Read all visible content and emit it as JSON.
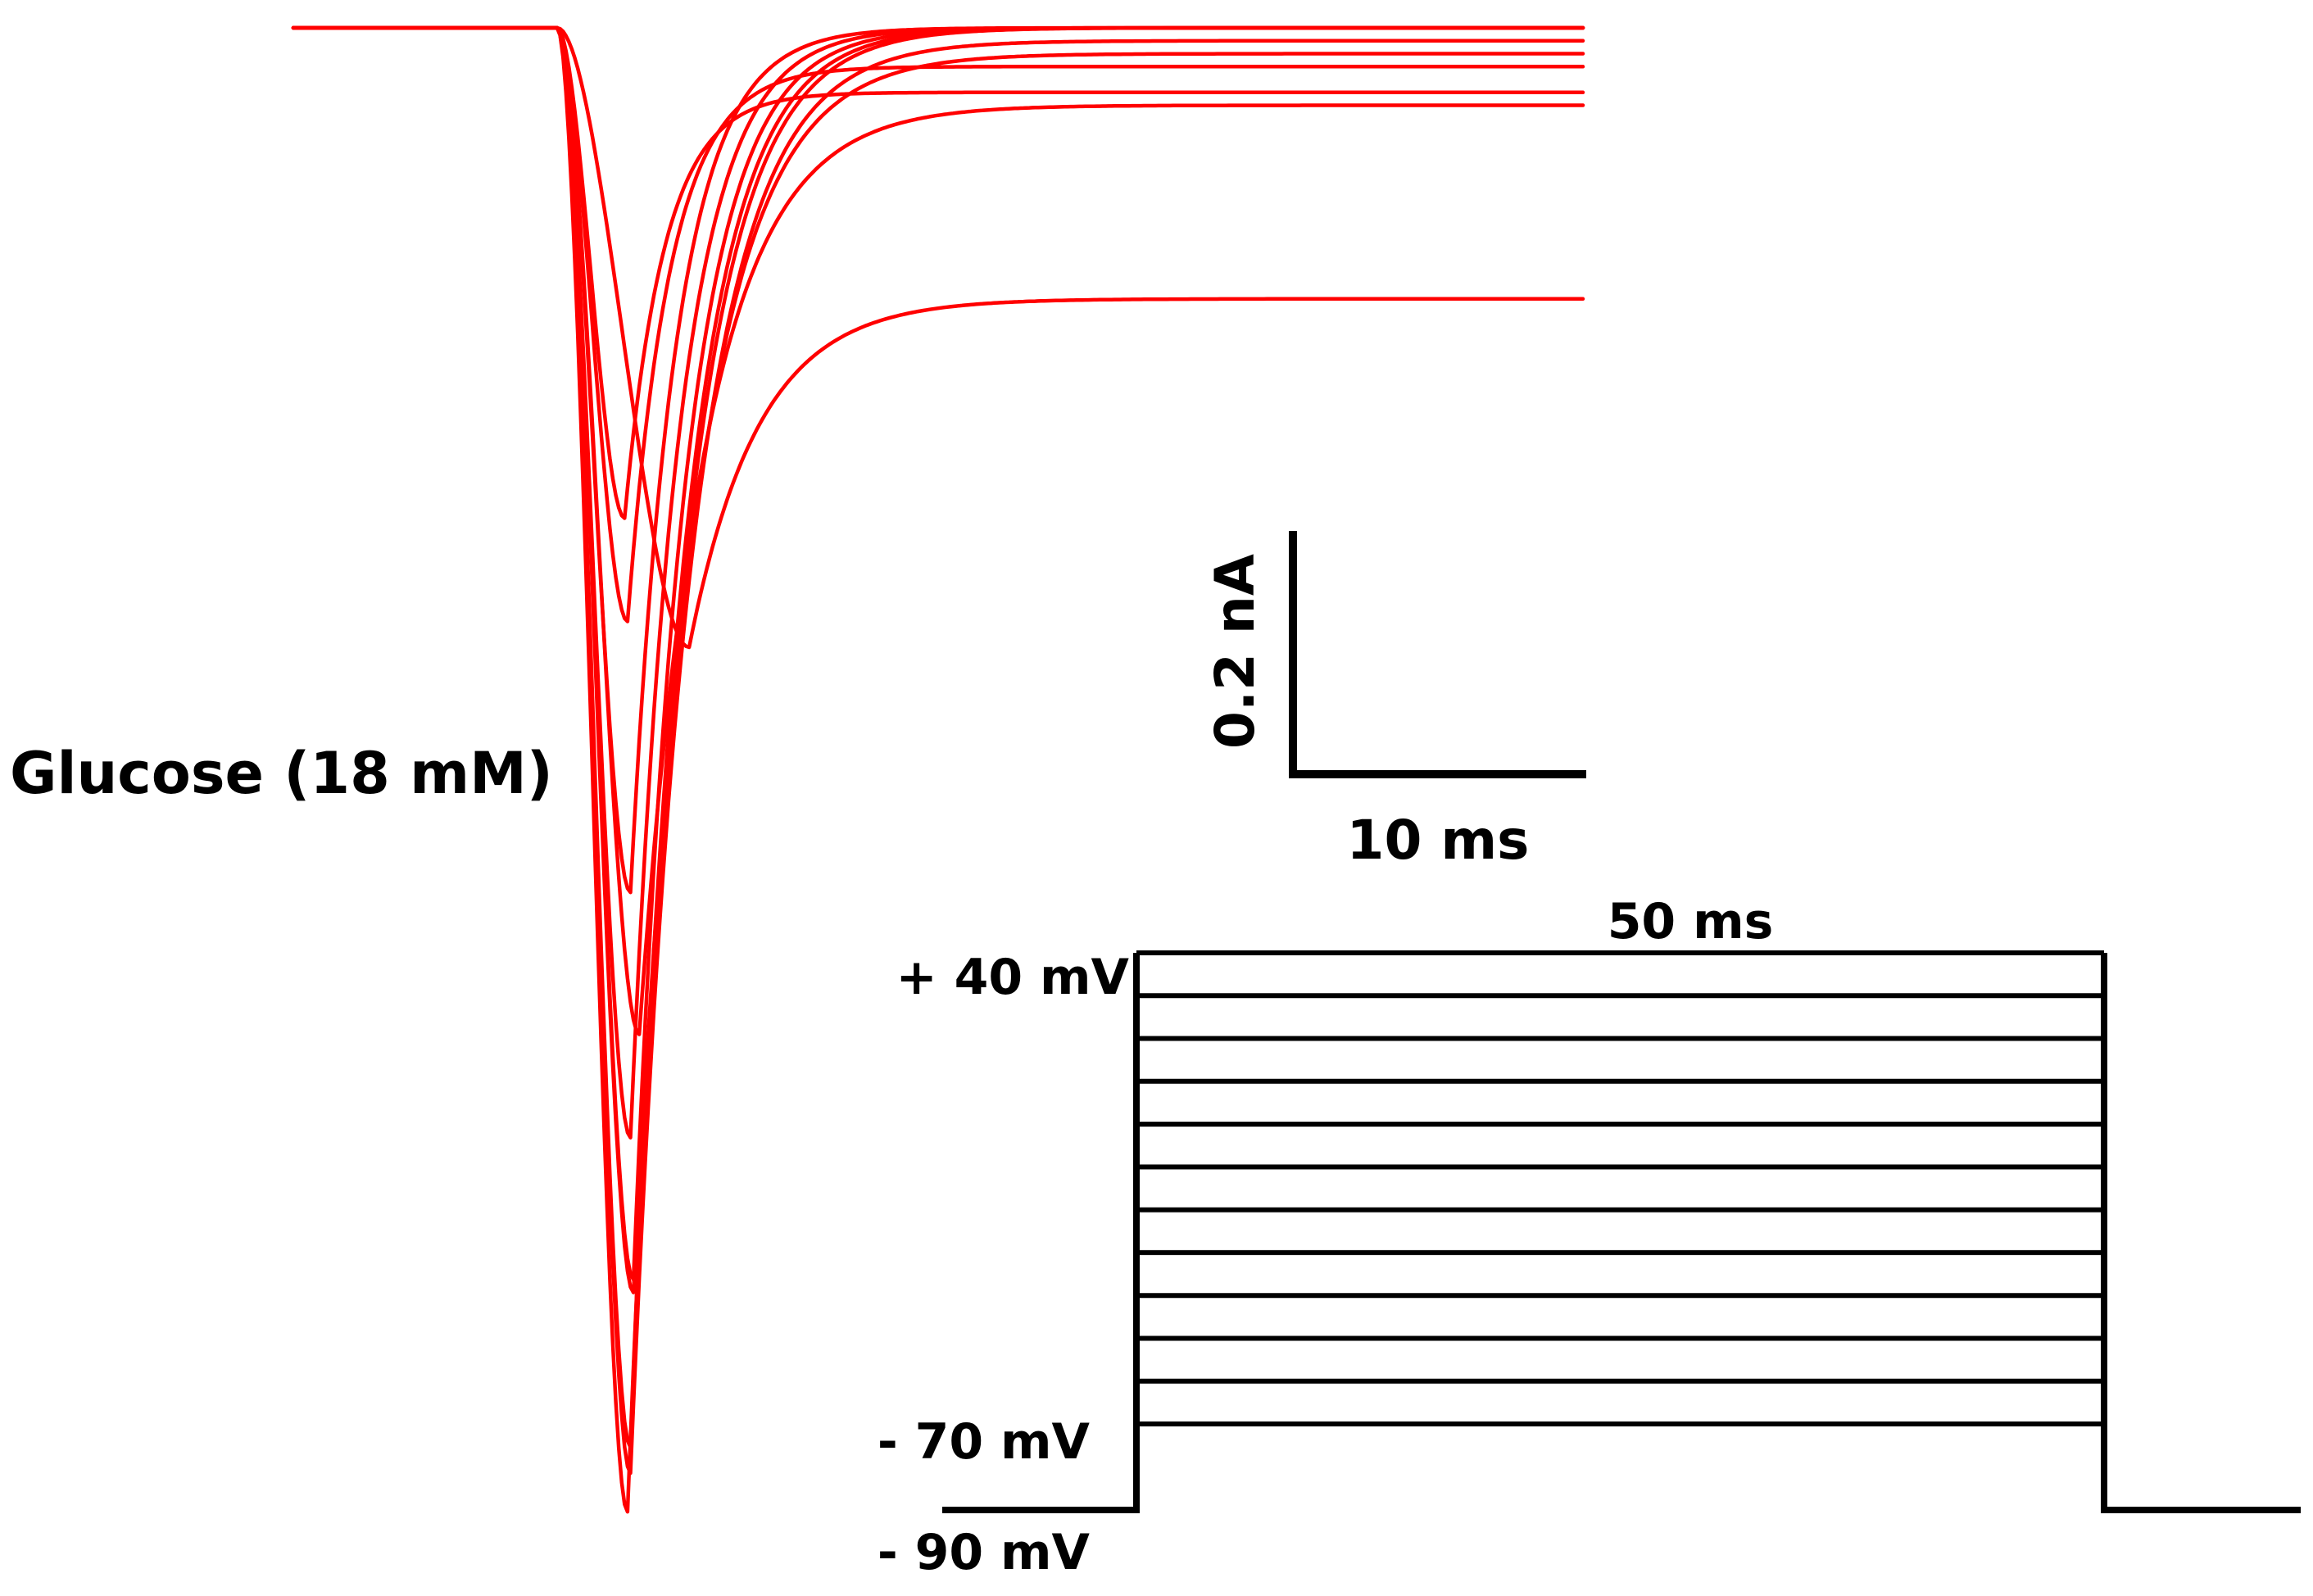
{
  "condition_label": "Glucose (18 mM)",
  "colors": {
    "traces": "#ff0000",
    "protocol": "#000000",
    "background": "#ffffff"
  },
  "scale_bar": {
    "current_label": "0.2 nA",
    "time_label": "10 ms",
    "current_nA": 0.2,
    "time_ms": 10
  },
  "protocol": {
    "duration_label": "50 ms",
    "top_label": "+ 40 mV",
    "bottom_step_label": "- 70 mV",
    "holding_label": "- 90 mV",
    "holding_mV": -90,
    "step_from_mV": -70,
    "step_to_mV": 40,
    "step_increment_mV": 10,
    "step_count": 12,
    "step_duration_ms": 50
  },
  "traces": {
    "count": 11,
    "time_ms": 50,
    "peak_current_nA": [
      -0.38,
      -0.46,
      -0.67,
      -0.86,
      -0.97,
      -1.1,
      -1.15,
      -1.12,
      -0.98,
      -0.78,
      -0.48
    ],
    "time_to_peak_ms": [
      2.3,
      2.4,
      2.5,
      2.5,
      2.6,
      2.5,
      2.4,
      2.5,
      2.6,
      2.8,
      4.5
    ],
    "steady_state_nA": [
      -0.05,
      -0.03,
      0.0,
      0.0,
      0.0,
      0.0,
      0.0,
      -0.01,
      -0.02,
      -0.06,
      -0.21
    ]
  }
}
